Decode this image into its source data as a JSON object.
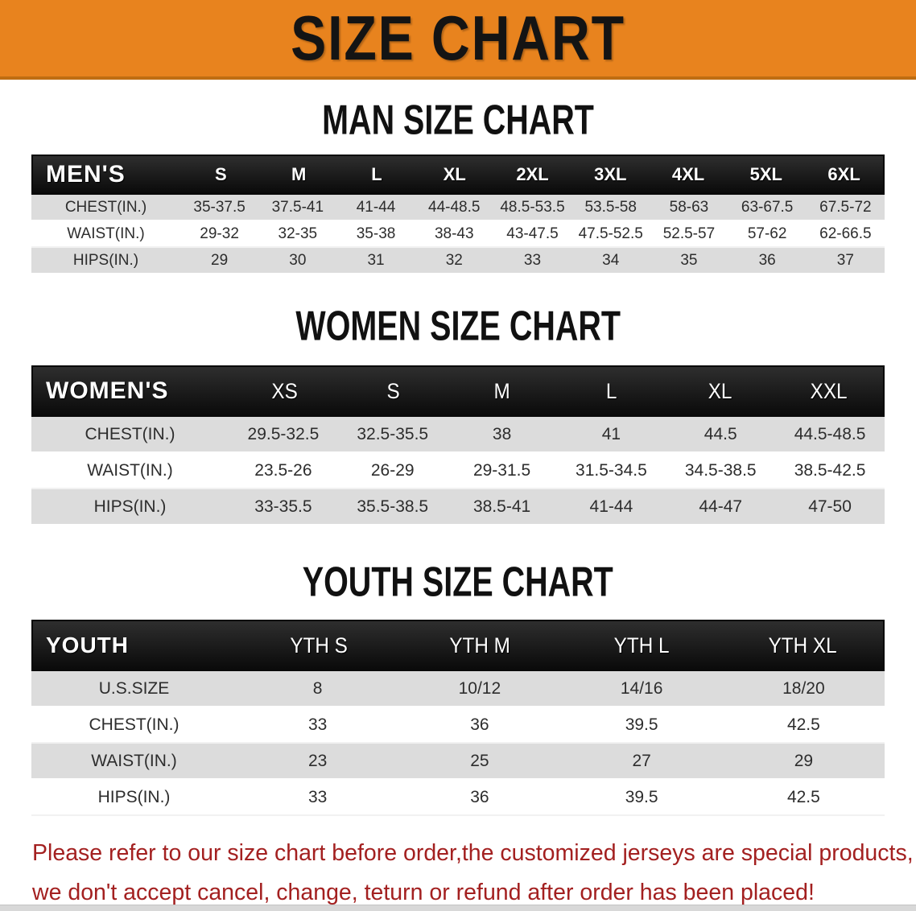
{
  "banner": {
    "title": "SIZE CHART"
  },
  "colors": {
    "banner_orange": "#E8831E",
    "header_black": "#171717",
    "row_gray": "#DCDCDC",
    "disclaimer_red": "#A32020"
  },
  "sections": [
    {
      "heading": "MAN SIZE CHART",
      "header_label": "MEN'S",
      "sizes": [
        "S",
        "M",
        "L",
        "XL",
        "2XL",
        "3XL",
        "4XL",
        "5XL",
        "6XL"
      ],
      "rows": [
        {
          "label": "CHEST(IN.)",
          "values": [
            "35-37.5",
            "37.5-41",
            "41-44",
            "44-48.5",
            "48.5-53.5",
            "53.5-58",
            "58-63",
            "63-67.5",
            "67.5-72"
          ]
        },
        {
          "label": "WAIST(IN.)",
          "values": [
            "29-32",
            "32-35",
            "35-38",
            "38-43",
            "43-47.5",
            "47.5-52.5",
            "52.5-57",
            "57-62",
            "62-66.5"
          ]
        },
        {
          "label": "HIPS(IN.)",
          "values": [
            "29",
            "30",
            "31",
            "32",
            "33",
            "34",
            "35",
            "36",
            "37"
          ]
        }
      ]
    },
    {
      "heading": "WOMEN SIZE CHART",
      "header_label": "WOMEN'S",
      "sizes": [
        "XS",
        "S",
        "M",
        "L",
        "XL",
        "XXL"
      ],
      "rows": [
        {
          "label": "CHEST(IN.)",
          "values": [
            "29.5-32.5",
            "32.5-35.5",
            "38",
            "41",
            "44.5",
            "44.5-48.5"
          ]
        },
        {
          "label": "WAIST(IN.)",
          "values": [
            "23.5-26",
            "26-29",
            "29-31.5",
            "31.5-34.5",
            "34.5-38.5",
            "38.5-42.5"
          ]
        },
        {
          "label": "HIPS(IN.)",
          "values": [
            "33-35.5",
            "35.5-38.5",
            "38.5-41",
            "41-44",
            "44-47",
            "47-50"
          ]
        }
      ]
    },
    {
      "heading": "YOUTH SIZE CHART",
      "header_label": "YOUTH",
      "sizes": [
        "YTH S",
        "YTH M",
        "YTH L",
        "YTH XL"
      ],
      "rows": [
        {
          "label": "U.S.SIZE",
          "values": [
            "8",
            "10/12",
            "14/16",
            "18/20"
          ]
        },
        {
          "label": "CHEST(IN.)",
          "values": [
            "33",
            "36",
            "39.5",
            "42.5"
          ]
        },
        {
          "label": "WAIST(IN.)",
          "values": [
            "23",
            "25",
            "27",
            "29"
          ]
        },
        {
          "label": "HIPS(IN.)",
          "values": [
            "33",
            "36",
            "39.5",
            "42.5"
          ]
        }
      ]
    }
  ],
  "disclaimer": {
    "line1": "Please refer to our size chart before order,the customized jerseys are special products,",
    "line2": "we don't accept cancel, change, teturn or refund after order has been placed!"
  }
}
